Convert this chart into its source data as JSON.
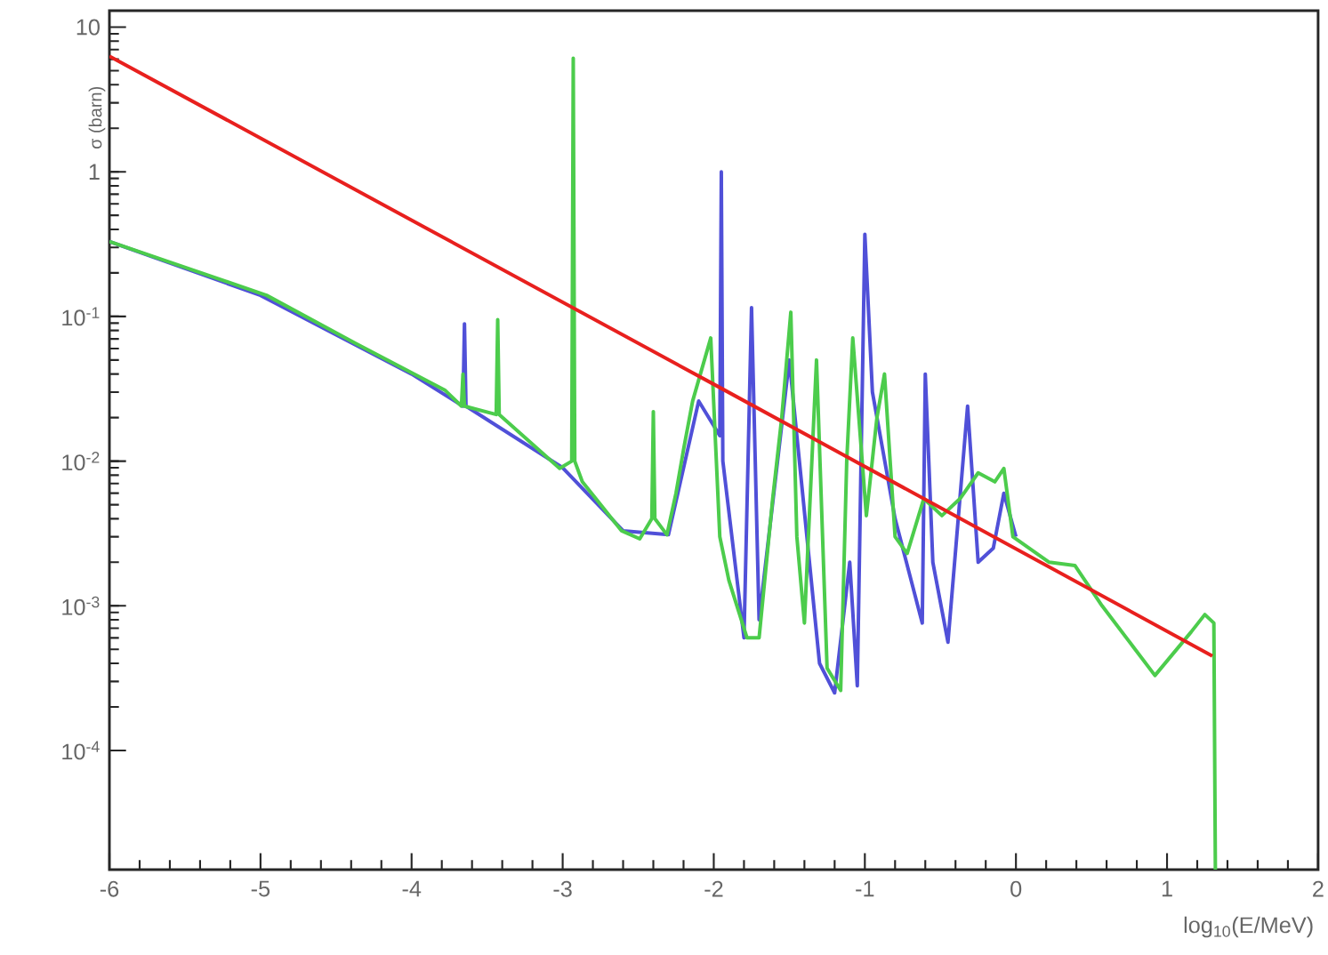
{
  "chart_data": {
    "type": "line",
    "xlabel": "log$_{10}$(E/MeV)",
    "ylabel": "σ (barn)",
    "log": "y",
    "marker": "none",
    "line_style": "solid",
    "xlim": [
      -6,
      2
    ],
    "ylim": [
      1.5e-05,
      13
    ],
    "xticks": [
      -6,
      -5,
      -4,
      -3,
      -2,
      -1,
      0,
      1,
      2
    ],
    "yticks": [
      {
        "value": 0.0001,
        "label": "10$^{-4}$"
      },
      {
        "value": 0.001,
        "label": "10$^{-3}$"
      },
      {
        "value": 0.01,
        "label": "10$^{-2}$"
      },
      {
        "value": 0.1,
        "label": "10$^{-1}$"
      },
      1,
      10
    ],
    "series": [
      {
        "color": "#5050d8",
        "x": [
          -6,
          -5,
          -4,
          -3.66,
          -3.65,
          -3.64,
          -3.0,
          -2.6,
          -2.3,
          -2.1,
          -1.96,
          -1.95,
          -1.94,
          -1.8,
          -1.75,
          -1.7,
          -1.5,
          -1.3,
          -1.2,
          -1.1,
          -1.05,
          -1.0,
          -0.95,
          -0.8,
          -0.62,
          -0.6,
          -0.55,
          -0.45,
          -0.32,
          -0.25,
          -0.15,
          -0.08,
          0
        ],
        "values": [
          0.33,
          0.14,
          0.04,
          0.024,
          0.089,
          0.024,
          0.009,
          0.0033,
          0.0031,
          0.026,
          0.015,
          1.0,
          0.01,
          0.0006,
          0.115,
          0.0008,
          0.05,
          0.0004,
          0.00025,
          0.002,
          0.00028,
          0.37,
          0.03,
          0.004,
          0.00076,
          0.04,
          0.002,
          0.00056,
          0.024,
          0.002,
          0.0025,
          0.006,
          0.003
        ]
      },
      {
        "color": "#4ccc4c",
        "x": [
          -6,
          -4.96,
          -4.37,
          -3.78,
          -3.67,
          -3.66,
          -3.65,
          -3.44,
          -3.43,
          -3.42,
          -3.02,
          -2.94,
          -2.93,
          -2.92,
          -2.87,
          -2.61,
          -2.49,
          -2.41,
          -2.4,
          -2.39,
          -2.31,
          -2.25,
          -2.2,
          -2.14,
          -2.02,
          -1.96,
          -1.9,
          -1.78,
          -1.7,
          -1.61,
          -1.55,
          -1.49,
          -1.45,
          -1.4,
          -1.32,
          -1.25,
          -1.16,
          -1.12,
          -1.08,
          -0.99,
          -0.92,
          -0.87,
          -0.8,
          -0.72,
          -0.61,
          -0.49,
          -0.37,
          -0.25,
          -0.14,
          -0.08,
          -0.02,
          0.22,
          0.39,
          0.57,
          0.92,
          1.16,
          1.25,
          1.31,
          1.32
        ],
        "values": [
          0.33,
          0.14,
          0.065,
          0.031,
          0.024,
          0.04,
          0.024,
          0.021,
          0.095,
          0.021,
          0.0089,
          0.01,
          6.1,
          0.01,
          0.0072,
          0.0033,
          0.0029,
          0.004,
          0.022,
          0.004,
          0.0031,
          0.006,
          0.012,
          0.026,
          0.071,
          0.003,
          0.0015,
          0.0006,
          0.0006,
          0.0055,
          0.02,
          0.107,
          0.003,
          0.00076,
          0.05,
          0.00037,
          0.00026,
          0.01,
          0.071,
          0.0042,
          0.02,
          0.04,
          0.003,
          0.0023,
          0.0055,
          0.0042,
          0.0055,
          0.0083,
          0.0072,
          0.0089,
          0.003,
          0.002,
          0.0019,
          0.001,
          0.00033,
          0.00066,
          0.00087,
          0.00076,
          1.5e-05
        ]
      },
      {
        "color": "#e8201e",
        "x": [
          -6,
          -2,
          1.3
        ],
        "values": [
          6.3,
          0.034,
          0.00045
        ]
      }
    ]
  }
}
